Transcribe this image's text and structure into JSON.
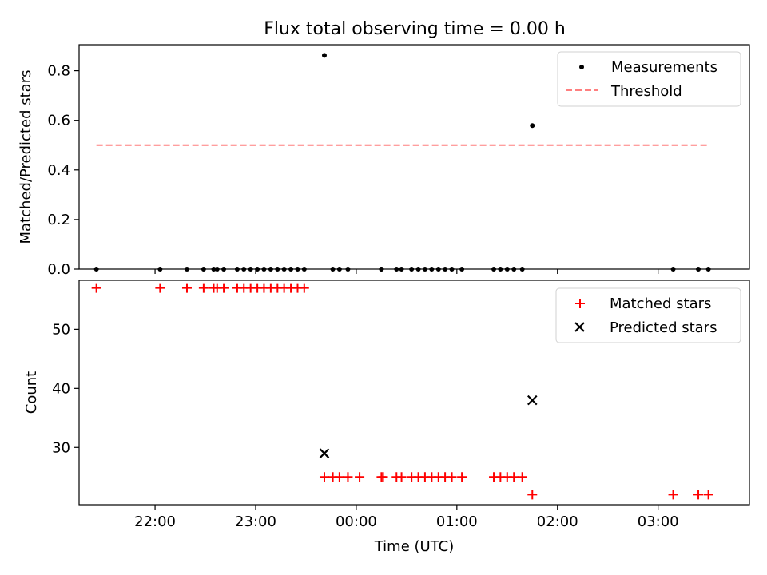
{
  "colors": {
    "measurement": "#000000",
    "threshold": "#ff7f7f",
    "matched": "#ff0000",
    "predicted": "#000000"
  },
  "chart_data": [
    {
      "type": "scatter",
      "title": "Flux total observing time = 0.00 h",
      "xlabel": "",
      "ylabel": "Matched/Predicted stars",
      "xlim": [
        -2.755,
        3.908
      ],
      "ylim": [
        0.0,
        0.905
      ],
      "x_ticks": [
        -2,
        -1,
        0,
        1,
        2,
        3
      ],
      "y_ticks": [
        0.0,
        0.2,
        0.4,
        0.6,
        0.8
      ],
      "y_tick_labels": [
        "0.0",
        "0.2",
        "0.4",
        "0.6",
        "0.8"
      ],
      "legend": {
        "position": "top-right",
        "entries": [
          "Measurements",
          "Threshold"
        ]
      },
      "series": [
        {
          "name": "Measurements",
          "marker": "dot",
          "x": [
            -2.583,
            -1.95,
            -1.683,
            -1.517,
            -1.417,
            -1.383,
            -1.317,
            -1.183,
            -1.117,
            -1.05,
            -0.983,
            -0.917,
            -0.85,
            -0.783,
            -0.717,
            -0.65,
            -0.583,
            -0.517,
            -0.317,
            -0.233,
            -0.167,
            -0.083,
            0.25,
            0.25,
            0.4,
            0.45,
            0.55,
            0.617,
            0.683,
            0.75,
            0.817,
            0.883,
            0.95,
            1.05,
            1.367,
            1.433,
            1.5,
            1.567,
            1.65,
            1.75,
            3.15,
            3.4,
            3.5
          ],
          "y": [
            0,
            0,
            0,
            0,
            0,
            0,
            0,
            0,
            0,
            0,
            0,
            0,
            0,
            0,
            0,
            0,
            0,
            0,
            0.862,
            0,
            0,
            0,
            0,
            0,
            0,
            0,
            0,
            0,
            0,
            0,
            0,
            0,
            0,
            0,
            0,
            0,
            0,
            0,
            0,
            0.579,
            0,
            0,
            0
          ]
        },
        {
          "name": "Threshold",
          "style": "dashed",
          "x": [
            -2.583,
            3.5
          ],
          "y": [
            0.5,
            0.5
          ]
        }
      ]
    },
    {
      "type": "scatter",
      "title": "",
      "xlabel": "Time (UTC)",
      "ylabel": "Count",
      "xlim": [
        -2.755,
        3.908
      ],
      "ylim": [
        20.3,
        58.3
      ],
      "x_ticks": [
        -2,
        -1,
        0,
        1,
        2,
        3
      ],
      "x_tick_labels": [
        "22:00",
        "23:00",
        "00:00",
        "01:00",
        "02:00",
        "03:00"
      ],
      "y_ticks": [
        30,
        40,
        50
      ],
      "y_tick_labels": [
        "30",
        "40",
        "50"
      ],
      "legend": {
        "position": "top-right",
        "entries": [
          "Matched stars",
          "Predicted stars"
        ]
      },
      "series": [
        {
          "name": "Matched stars",
          "marker": "plus",
          "x": [
            -2.583,
            -1.95,
            -1.683,
            -1.517,
            -1.417,
            -1.383,
            -1.317,
            -1.183,
            -1.117,
            -1.05,
            -0.983,
            -0.917,
            -0.85,
            -0.783,
            -0.717,
            -0.65,
            -0.583,
            -0.517,
            -0.317,
            -0.233,
            -0.167,
            -0.083,
            0.033,
            0.25,
            0.267,
            0.4,
            0.45,
            0.55,
            0.617,
            0.683,
            0.75,
            0.817,
            0.883,
            0.95,
            1.05,
            1.367,
            1.433,
            1.5,
            1.567,
            1.65,
            1.75,
            3.15,
            3.4,
            3.5
          ],
          "y": [
            57,
            57,
            57,
            57,
            57,
            57,
            57,
            57,
            57,
            57,
            57,
            57,
            57,
            57,
            57,
            57,
            57,
            57,
            25,
            25,
            25,
            25,
            25,
            25,
            25,
            25,
            25,
            25,
            25,
            25,
            25,
            25,
            25,
            25,
            25,
            25,
            25,
            25,
            25,
            25,
            22,
            22,
            22,
            22
          ]
        },
        {
          "name": "Predicted stars",
          "marker": "x",
          "x": [
            -0.317,
            1.75
          ],
          "y": [
            29,
            38
          ]
        }
      ]
    }
  ]
}
